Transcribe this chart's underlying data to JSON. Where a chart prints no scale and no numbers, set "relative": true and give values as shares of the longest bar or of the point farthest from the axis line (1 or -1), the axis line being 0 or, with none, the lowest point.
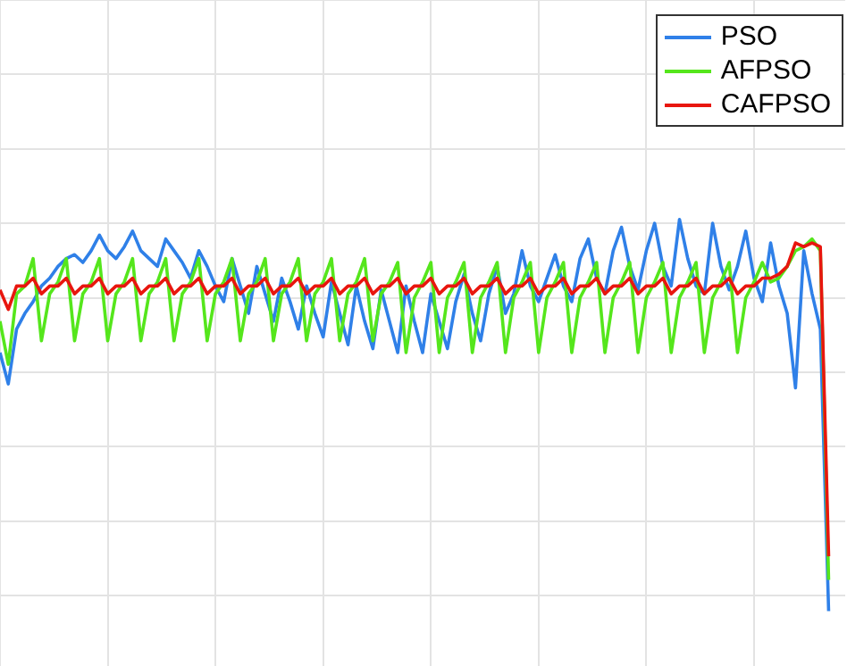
{
  "chart_data": {
    "type": "line",
    "relative": true,
    "grid": true,
    "legend": "top right",
    "marker": "none",
    "line_style": "solid",
    "tick_labels": false,
    "categories": [
      null,
      null,
      null,
      null,
      null,
      null,
      null,
      null,
      null,
      null,
      null,
      null,
      null,
      null,
      null,
      null,
      null,
      null,
      null,
      null,
      null,
      null,
      null,
      null,
      null,
      null,
      null,
      null,
      null,
      null,
      null,
      null,
      null,
      null,
      null,
      null,
      null,
      null,
      null,
      null,
      null,
      null,
      null,
      null,
      null,
      null,
      null,
      null,
      null,
      null,
      null,
      null,
      null,
      null,
      null,
      null,
      null,
      null,
      null,
      null,
      null,
      null,
      null,
      null,
      null,
      null,
      null,
      null,
      null,
      null,
      null,
      null,
      null,
      null,
      null,
      null,
      null,
      null,
      null,
      null,
      null,
      null,
      null,
      null,
      null,
      null,
      null,
      null,
      null,
      null,
      null,
      null,
      null,
      null,
      null,
      null,
      null,
      null,
      null,
      null,
      null
    ],
    "series": [
      {
        "name": "PSO",
        "color": "#2f80e8",
        "values": [
          0.66,
          0.58,
          0.72,
          0.76,
          0.79,
          0.83,
          0.85,
          0.88,
          0.9,
          0.91,
          0.89,
          0.92,
          0.96,
          0.92,
          0.9,
          0.93,
          0.97,
          0.92,
          0.9,
          0.88,
          0.95,
          0.92,
          0.89,
          0.85,
          0.92,
          0.88,
          0.83,
          0.79,
          0.9,
          0.83,
          0.76,
          0.88,
          0.81,
          0.74,
          0.85,
          0.79,
          0.72,
          0.83,
          0.76,
          0.7,
          0.84,
          0.76,
          0.68,
          0.83,
          0.74,
          0.67,
          0.82,
          0.74,
          0.66,
          0.83,
          0.74,
          0.66,
          0.81,
          0.74,
          0.67,
          0.79,
          0.86,
          0.76,
          0.69,
          0.81,
          0.88,
          0.76,
          0.81,
          0.92,
          0.83,
          0.79,
          0.85,
          0.91,
          0.83,
          0.79,
          0.9,
          0.95,
          0.85,
          0.81,
          0.92,
          0.98,
          0.88,
          0.82,
          0.92,
          0.99,
          0.88,
          0.83,
          1,
          0.9,
          0.83,
          0.81,
          0.99,
          0.88,
          0.82,
          0.88,
          0.97,
          0.85,
          0.79,
          0.94,
          0.83,
          0.76,
          0.57,
          0.92,
          0.81,
          0.72,
          0
        ]
      },
      {
        "name": "AFPSO",
        "color": "#55e61c",
        "values": [
          0.74,
          0.63,
          0.81,
          0.83,
          0.9,
          0.69,
          0.81,
          0.84,
          0.9,
          0.69,
          0.81,
          0.84,
          0.9,
          0.69,
          0.81,
          0.84,
          0.9,
          0.69,
          0.81,
          0.84,
          0.9,
          0.69,
          0.81,
          0.84,
          0.9,
          0.69,
          0.81,
          0.84,
          0.9,
          0.69,
          0.81,
          0.84,
          0.9,
          0.69,
          0.81,
          0.84,
          0.9,
          0.69,
          0.81,
          0.84,
          0.9,
          0.69,
          0.81,
          0.84,
          0.9,
          0.69,
          0.81,
          0.84,
          0.89,
          0.66,
          0.8,
          0.84,
          0.89,
          0.66,
          0.8,
          0.84,
          0.89,
          0.66,
          0.8,
          0.84,
          0.89,
          0.66,
          0.8,
          0.84,
          0.89,
          0.66,
          0.8,
          0.84,
          0.89,
          0.66,
          0.8,
          0.84,
          0.89,
          0.66,
          0.8,
          0.84,
          0.89,
          0.66,
          0.8,
          0.84,
          0.89,
          0.66,
          0.8,
          0.84,
          0.89,
          0.66,
          0.8,
          0.84,
          0.89,
          0.66,
          0.8,
          0.84,
          0.89,
          0.84,
          0.85,
          0.88,
          0.92,
          0.93,
          0.95,
          0.92,
          0.08
        ]
      },
      {
        "name": "CAFPSO",
        "color": "#e8160e",
        "values": [
          0.82,
          0.77,
          0.83,
          0.83,
          0.85,
          0.81,
          0.83,
          0.83,
          0.85,
          0.81,
          0.83,
          0.83,
          0.85,
          0.81,
          0.83,
          0.83,
          0.85,
          0.81,
          0.83,
          0.83,
          0.85,
          0.81,
          0.83,
          0.83,
          0.85,
          0.81,
          0.83,
          0.83,
          0.85,
          0.81,
          0.83,
          0.83,
          0.85,
          0.81,
          0.83,
          0.83,
          0.85,
          0.81,
          0.83,
          0.83,
          0.85,
          0.81,
          0.83,
          0.83,
          0.85,
          0.81,
          0.83,
          0.83,
          0.85,
          0.81,
          0.83,
          0.83,
          0.85,
          0.81,
          0.83,
          0.83,
          0.85,
          0.81,
          0.83,
          0.83,
          0.85,
          0.81,
          0.83,
          0.83,
          0.85,
          0.81,
          0.83,
          0.83,
          0.85,
          0.81,
          0.83,
          0.83,
          0.85,
          0.81,
          0.83,
          0.83,
          0.85,
          0.81,
          0.83,
          0.83,
          0.85,
          0.81,
          0.83,
          0.83,
          0.85,
          0.81,
          0.83,
          0.83,
          0.85,
          0.81,
          0.83,
          0.83,
          0.85,
          0.85,
          0.86,
          0.88,
          0.94,
          0.93,
          0.94,
          0.93,
          0.14
        ]
      }
    ]
  }
}
